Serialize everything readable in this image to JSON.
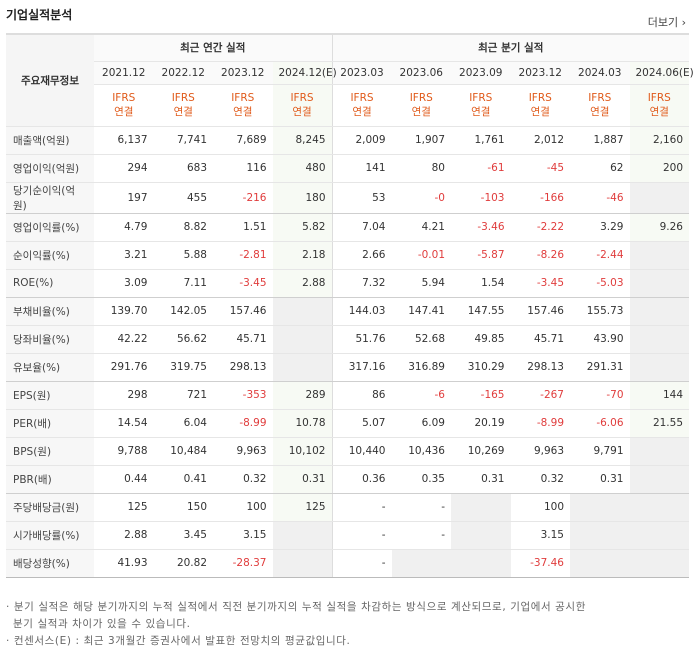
{
  "header": {
    "title": "기업실적분석",
    "more": "더보기"
  },
  "table": {
    "corner": "주요재무정보",
    "groups": [
      "최근 연간 실적",
      "최근 분기 실적"
    ],
    "columns": [
      {
        "period": "2021.12",
        "basis": "IFRS",
        "scope": "연결"
      },
      {
        "period": "2022.12",
        "basis": "IFRS",
        "scope": "연결"
      },
      {
        "period": "2023.12",
        "basis": "IFRS",
        "scope": "연결"
      },
      {
        "period": "2024.12(E)",
        "basis": "IFRS",
        "scope": "연결"
      },
      {
        "period": "2023.03",
        "basis": "IFRS",
        "scope": "연결"
      },
      {
        "period": "2023.06",
        "basis": "IFRS",
        "scope": "연결"
      },
      {
        "period": "2023.09",
        "basis": "IFRS",
        "scope": "연결"
      },
      {
        "period": "2023.12",
        "basis": "IFRS",
        "scope": "연결"
      },
      {
        "period": "2024.03",
        "basis": "IFRS",
        "scope": "연결"
      },
      {
        "period": "2024.06(E)",
        "basis": "IFRS",
        "scope": "연결"
      }
    ],
    "rows": [
      {
        "label": "매출액(억원)",
        "values": [
          "6,137",
          "7,741",
          "7,689",
          "8,245",
          "2,009",
          "1,907",
          "1,761",
          "2,012",
          "1,887",
          "2,160"
        ]
      },
      {
        "label": "영업이익(억원)",
        "values": [
          "294",
          "683",
          "116",
          "480",
          "141",
          "80",
          "-61",
          "-45",
          "62",
          "200"
        ]
      },
      {
        "label": "당기순이익(억원)",
        "values": [
          "197",
          "455",
          "-216",
          "180",
          "53",
          "-0",
          "-103",
          "-166",
          "-46",
          null
        ]
      },
      {
        "label": "영업이익률(%)",
        "values": [
          "4.79",
          "8.82",
          "1.51",
          "5.82",
          "7.04",
          "4.21",
          "-3.46",
          "-2.22",
          "3.29",
          "9.26"
        ]
      },
      {
        "label": "순이익률(%)",
        "values": [
          "3.21",
          "5.88",
          "-2.81",
          "2.18",
          "2.66",
          "-0.01",
          "-5.87",
          "-8.26",
          "-2.44",
          null
        ]
      },
      {
        "label": "ROE(%)",
        "values": [
          "3.09",
          "7.11",
          "-3.45",
          "2.88",
          "7.32",
          "5.94",
          "1.54",
          "-3.45",
          "-5.03",
          null
        ]
      },
      {
        "label": "부채비율(%)",
        "values": [
          "139.70",
          "142.05",
          "157.46",
          null,
          "144.03",
          "147.41",
          "147.55",
          "157.46",
          "155.73",
          null
        ]
      },
      {
        "label": "당좌비율(%)",
        "values": [
          "42.22",
          "56.62",
          "45.71",
          null,
          "51.76",
          "52.68",
          "49.85",
          "45.71",
          "43.90",
          null
        ]
      },
      {
        "label": "유보율(%)",
        "values": [
          "291.76",
          "319.75",
          "298.13",
          null,
          "317.16",
          "316.89",
          "310.29",
          "298.13",
          "291.31",
          null
        ]
      },
      {
        "label": "EPS(원)",
        "values": [
          "298",
          "721",
          "-353",
          "289",
          "86",
          "-6",
          "-165",
          "-267",
          "-70",
          "144"
        ]
      },
      {
        "label": "PER(배)",
        "values": [
          "14.54",
          "6.04",
          "-8.99",
          "10.78",
          "5.07",
          "6.09",
          "20.19",
          "-8.99",
          "-6.06",
          "21.55"
        ]
      },
      {
        "label": "BPS(원)",
        "values": [
          "9,788",
          "10,484",
          "9,963",
          "10,102",
          "10,440",
          "10,436",
          "10,269",
          "9,963",
          "9,791",
          null
        ]
      },
      {
        "label": "PBR(배)",
        "values": [
          "0.44",
          "0.41",
          "0.32",
          "0.31",
          "0.36",
          "0.35",
          "0.31",
          "0.32",
          "0.31",
          null
        ]
      },
      {
        "label": "주당배당금(원)",
        "values": [
          "125",
          "150",
          "100",
          "125",
          "-",
          "-",
          null,
          "100",
          null,
          null
        ]
      },
      {
        "label": "시가배당률(%)",
        "values": [
          "2.88",
          "3.45",
          "3.15",
          null,
          "-",
          "-",
          null,
          "3.15",
          null,
          null
        ]
      },
      {
        "label": "배당성향(%)",
        "values": [
          "41.93",
          "20.82",
          "-28.37",
          null,
          "-",
          null,
          null,
          "-37.46",
          null,
          null
        ]
      }
    ]
  },
  "notes": [
    "분기 실적은 해당 분기까지의 누적 실적에서 직전 분기까지의 누적 실적을 차감하는 방식으로 계산되므로, 기업에서 공시한 분기 실적과 차이가 있을 수 있습니다.",
    "컨센서스(E) : 최근 3개월간 증권사에서 발표한 전망치의 평균값입니다."
  ]
}
